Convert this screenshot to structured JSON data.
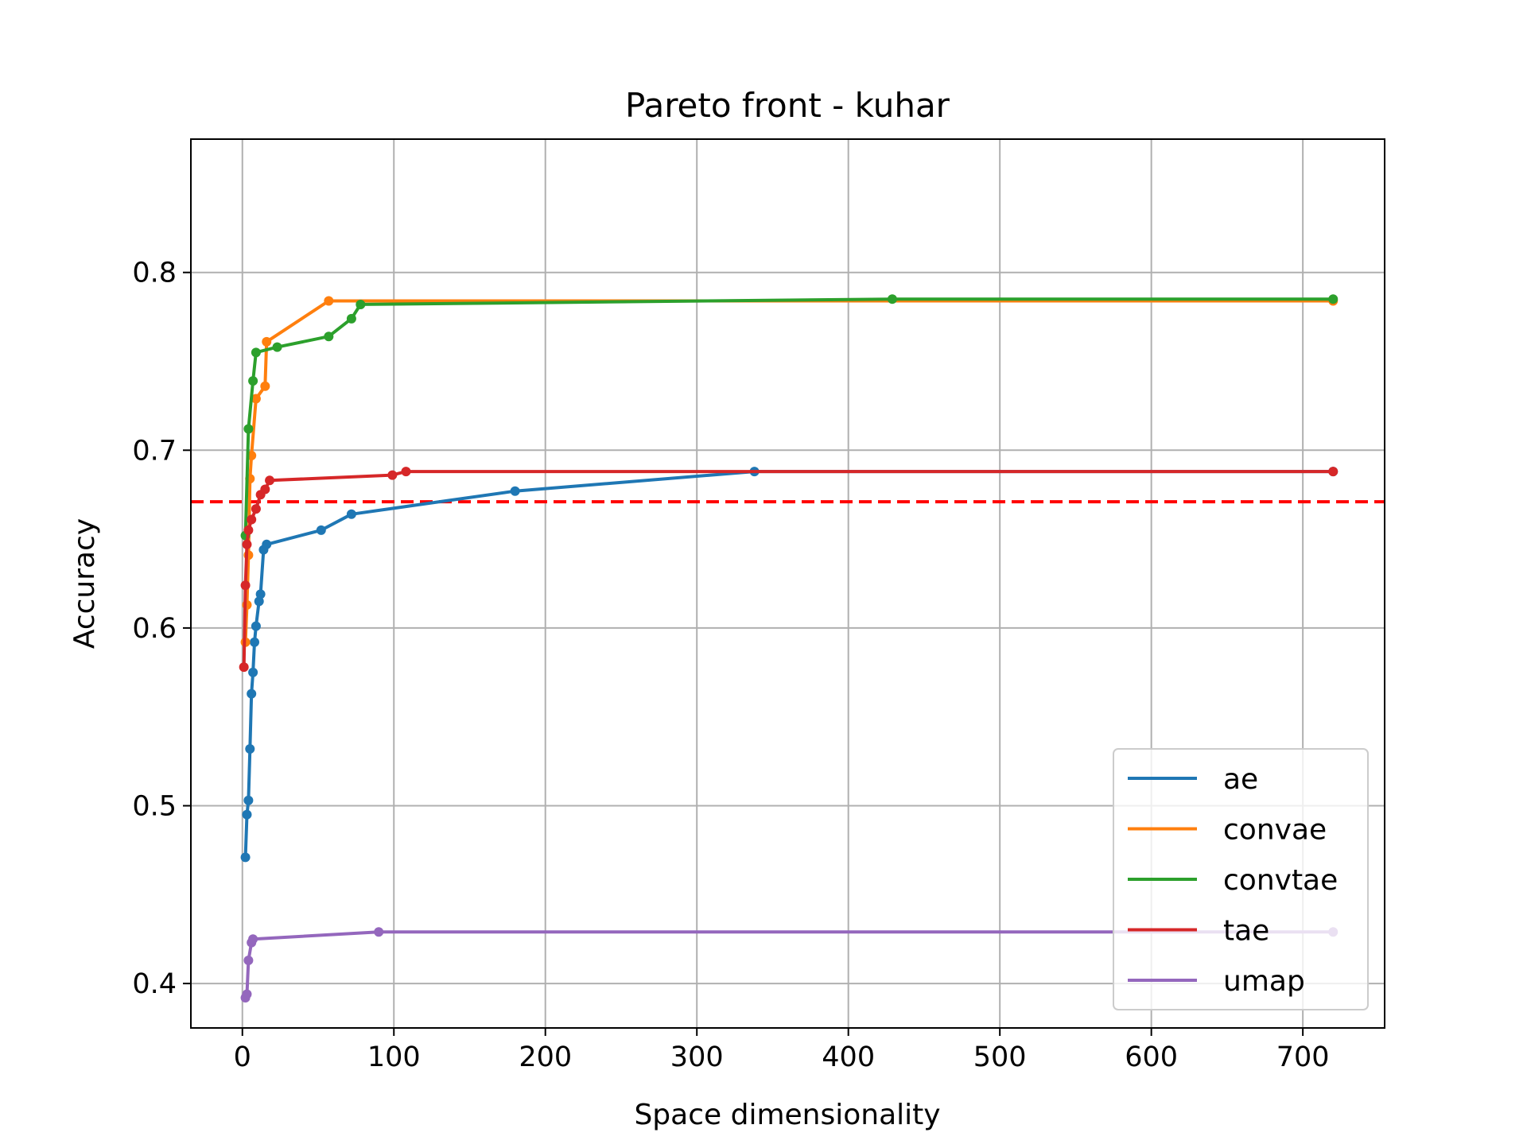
{
  "chart_data": {
    "type": "line",
    "title": "Pareto front - kuhar",
    "xlabel": "Space dimensionality",
    "ylabel": "Accuracy",
    "xlim": [
      -34,
      754
    ],
    "ylim": [
      0.375,
      0.875
    ],
    "x_ticks": [
      0,
      100,
      200,
      300,
      400,
      500,
      600,
      700
    ],
    "y_ticks": [
      0.4,
      0.5,
      0.6,
      0.7,
      0.8
    ],
    "x_tick_labels": [
      "0",
      "100",
      "200",
      "300",
      "400",
      "500",
      "600",
      "700"
    ],
    "y_tick_labels": [
      "0.4",
      "0.5",
      "0.6",
      "0.7",
      "0.8"
    ],
    "grid": true,
    "legend_position": "lower-right",
    "reference_line": {
      "y": 0.671,
      "color": "#ff0000",
      "style": "dashed"
    },
    "series": [
      {
        "name": "ae",
        "color": "#1f77b4",
        "points": [
          [
            2,
            0.471
          ],
          [
            3,
            0.495
          ],
          [
            4,
            0.503
          ],
          [
            5,
            0.532
          ],
          [
            6,
            0.563
          ],
          [
            7,
            0.575
          ],
          [
            8,
            0.592
          ],
          [
            9,
            0.601
          ],
          [
            11,
            0.615
          ],
          [
            12,
            0.619
          ],
          [
            14,
            0.644
          ],
          [
            16,
            0.647
          ],
          [
            52,
            0.655
          ],
          [
            72,
            0.664
          ],
          [
            180,
            0.677
          ],
          [
            338,
            0.688
          ],
          [
            720,
            0.688
          ]
        ]
      },
      {
        "name": "convae",
        "color": "#ff7f0e",
        "points": [
          [
            2,
            0.592
          ],
          [
            3,
            0.613
          ],
          [
            4,
            0.641
          ],
          [
            5,
            0.684
          ],
          [
            6,
            0.697
          ],
          [
            9,
            0.729
          ],
          [
            15,
            0.736
          ],
          [
            16,
            0.761
          ],
          [
            57,
            0.784
          ],
          [
            720,
            0.784
          ]
        ]
      },
      {
        "name": "convtae",
        "color": "#2ca02c",
        "points": [
          [
            2,
            0.652
          ],
          [
            4,
            0.712
          ],
          [
            7,
            0.739
          ],
          [
            9,
            0.755
          ],
          [
            23,
            0.758
          ],
          [
            57,
            0.764
          ],
          [
            72,
            0.774
          ],
          [
            78,
            0.782
          ],
          [
            429,
            0.785
          ],
          [
            720,
            0.785
          ]
        ]
      },
      {
        "name": "tae",
        "color": "#d62728",
        "points": [
          [
            1,
            0.578
          ],
          [
            2,
            0.624
          ],
          [
            3,
            0.647
          ],
          [
            4,
            0.655
          ],
          [
            6,
            0.661
          ],
          [
            9,
            0.667
          ],
          [
            12,
            0.675
          ],
          [
            15,
            0.678
          ],
          [
            18,
            0.683
          ],
          [
            99,
            0.686
          ],
          [
            108,
            0.688
          ],
          [
            720,
            0.688
          ]
        ]
      },
      {
        "name": "umap",
        "color": "#9467bd",
        "points": [
          [
            2,
            0.392
          ],
          [
            3,
            0.394
          ],
          [
            4,
            0.413
          ],
          [
            6,
            0.423
          ],
          [
            7,
            0.425
          ],
          [
            90,
            0.429
          ],
          [
            720,
            0.429
          ]
        ]
      }
    ]
  }
}
